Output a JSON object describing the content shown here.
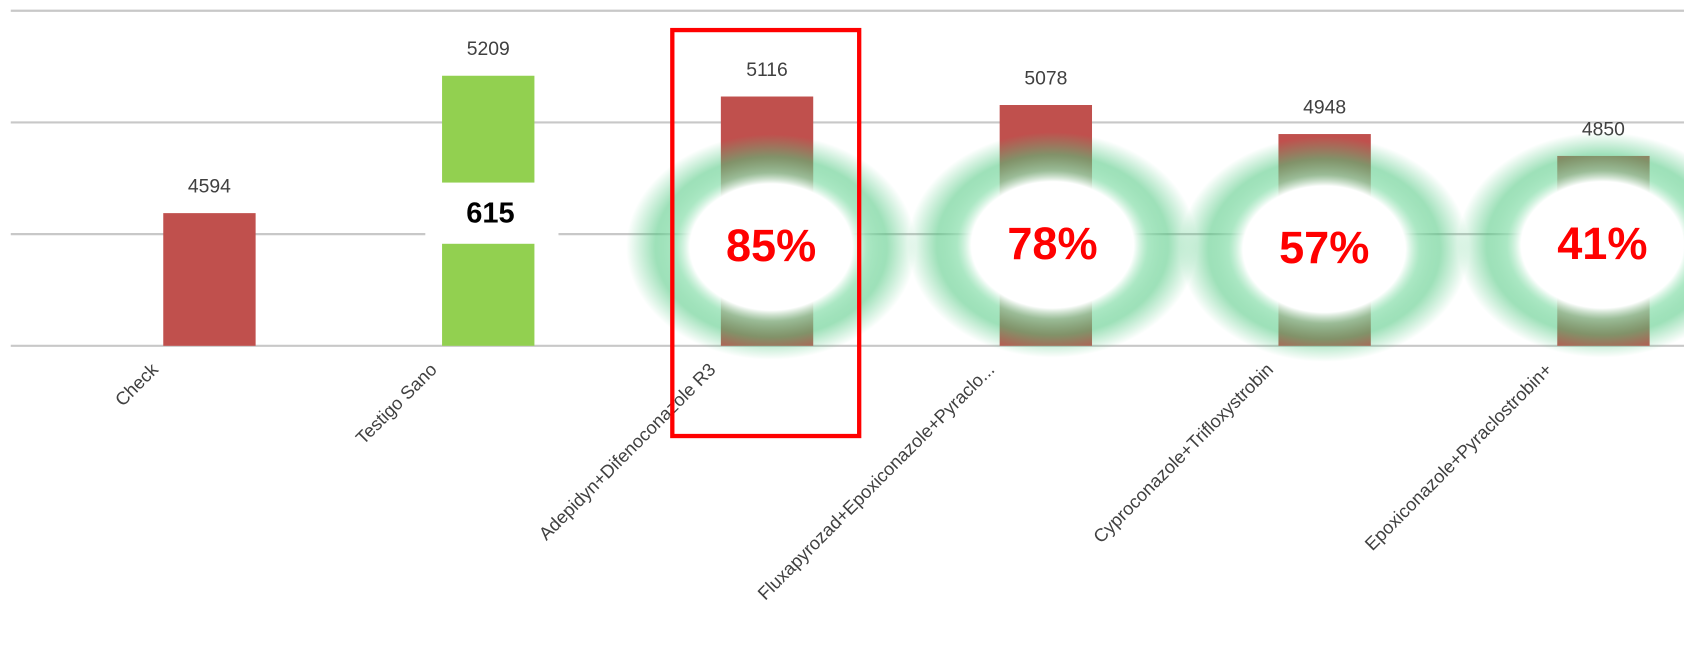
{
  "chart_data": {
    "type": "bar",
    "categories": [
      "Check",
      "Testigo Sano",
      "Adepidyn+Difenoconazole R3",
      "Fluxapyrozad+Epoxiconazole+Pyraclo...",
      "Cyproconazole+Trifloxystrobin",
      "Epoxiconazole+Pyraclostrobin+"
    ],
    "values": [
      4594,
      5209,
      5116,
      5078,
      4948,
      4850
    ],
    "colors": [
      "#c0504d",
      "#92d050",
      "#c0504d",
      "#c0504d",
      "#c0504d",
      "#c0504d"
    ],
    "ylim": [
      4000,
      5500
    ],
    "yticks": [
      4000,
      4500,
      5000,
      5500
    ],
    "grid": true,
    "annotations": [
      "615",
      "85%",
      "78%",
      "57%",
      "41%"
    ]
  }
}
